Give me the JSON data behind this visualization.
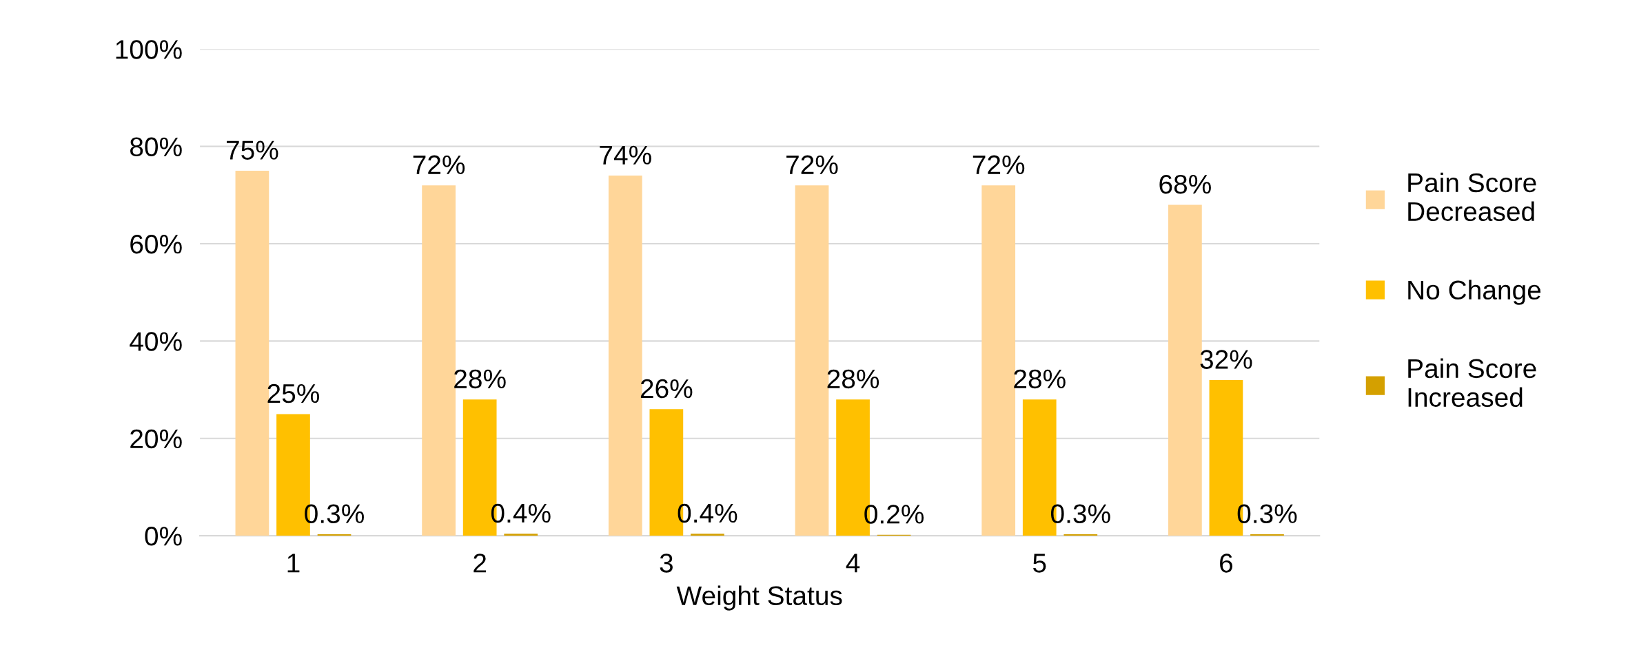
{
  "chart_data": {
    "type": "bar",
    "xlabel": "Weight Status",
    "categories": [
      "1",
      "2",
      "3",
      "4",
      "5",
      "6"
    ],
    "series": [
      {
        "name": "Pain Score Decreased",
        "color": "#ffd699",
        "values": [
          75,
          72,
          74,
          72,
          72,
          68
        ],
        "value_labels": [
          "75%",
          "72%",
          "74%",
          "72%",
          "72%",
          "68%"
        ]
      },
      {
        "name": "No Change",
        "color": "#ffc000",
        "values": [
          25,
          28,
          26,
          28,
          28,
          32
        ],
        "value_labels": [
          "25%",
          "28%",
          "26%",
          "28%",
          "28%",
          "32%"
        ]
      },
      {
        "name": "Pain Score Increased",
        "color": "#d4a000",
        "values": [
          0.3,
          0.4,
          0.4,
          0.2,
          0.3,
          0.3
        ],
        "value_labels": [
          "0.3%",
          "0.4%",
          "0.4%",
          "0.2%",
          "0.3%",
          "0.3%"
        ]
      }
    ],
    "ylim": [
      0,
      100
    ],
    "yticks": [
      {
        "value": 0,
        "label": "0%"
      },
      {
        "value": 20,
        "label": "20%"
      },
      {
        "value": 40,
        "label": "40%"
      },
      {
        "value": 60,
        "label": "60%"
      },
      {
        "value": 80,
        "label": "80%"
      },
      {
        "value": 100,
        "label": "100%"
      }
    ],
    "grid": "y",
    "legend": "right"
  }
}
